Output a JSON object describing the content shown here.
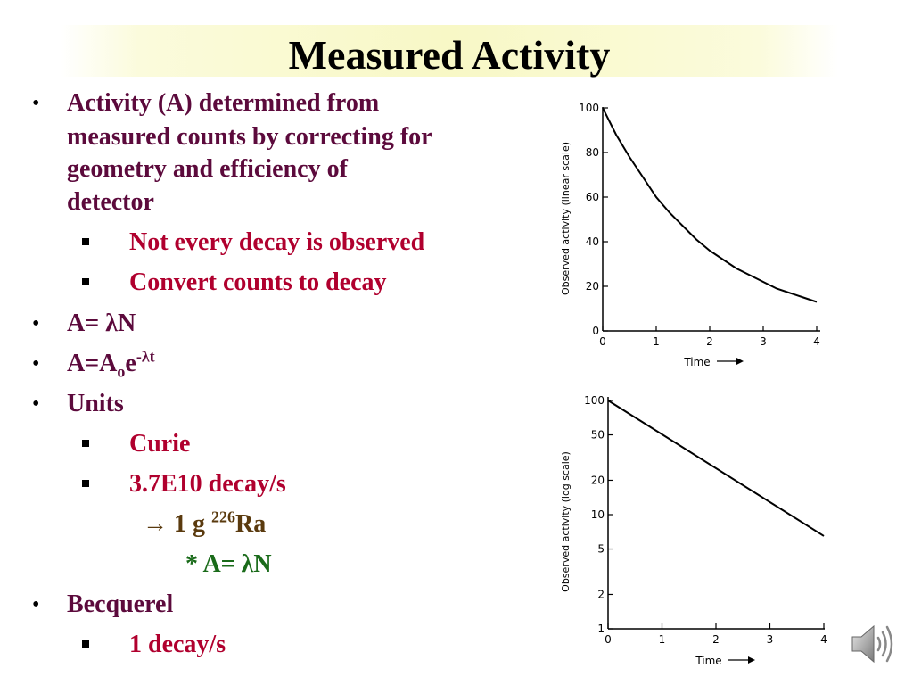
{
  "slide": {
    "title": "Measured Activity"
  },
  "bullets": {
    "b1_line1": "Activity (A) determined from",
    "b1_line2": "measured counts by correcting for",
    "b1_line3": "geometry and efficiency of",
    "b1_line4": "detector",
    "b1_sub1": "Not every decay is observed",
    "b1_sub2": "Convert counts to decay",
    "b2_prefix": "A= ",
    "b2_lambda": "λ",
    "b2_N": "N",
    "b3_A": "A=A",
    "b3_sub": "o",
    "b3_e": "e",
    "b3_sup": "-λt",
    "b4": "Units",
    "b4_sub1": "Curie",
    "b4_sub2": "3.7E10 decay/s",
    "b4_arrow": "→",
    "b4_ra_prefix": " 1 g ",
    "b4_ra_sup": "226",
    "b4_ra_suffix": "Ra",
    "b4_star_prefix": "* A= ",
    "b4_star_lambda": "λ",
    "b4_star_N": "N",
    "b5": "Becquerel",
    "b5_sub1": "1 decay/s"
  },
  "chart_data": [
    {
      "type": "line",
      "ylabel": "Observed activity (linear scale)",
      "xlabel": "Time",
      "x_ticks": [
        "0",
        "1",
        "2",
        "3",
        "4"
      ],
      "y_ticks": [
        "0",
        "20",
        "40",
        "60",
        "80",
        "100"
      ],
      "xlim": [
        0,
        4
      ],
      "ylim": [
        0,
        100
      ],
      "x": [
        0,
        0.25,
        0.5,
        0.75,
        1,
        1.25,
        1.5,
        1.75,
        2,
        2.25,
        2.5,
        2.75,
        3,
        3.25,
        3.5,
        3.75,
        4
      ],
      "y": [
        100,
        88,
        78,
        69,
        60,
        53,
        47,
        41,
        36,
        32,
        28,
        25,
        22,
        19,
        17,
        15,
        13
      ]
    },
    {
      "type": "line",
      "y_scale": "log",
      "ylabel": "Observed activity (log scale)",
      "xlabel": "Time",
      "x_ticks": [
        "0",
        "1",
        "2",
        "3",
        "4"
      ],
      "y_ticks": [
        "1",
        "2",
        "5",
        "10",
        "20",
        "50",
        "100"
      ],
      "xlim": [
        0,
        4
      ],
      "ylim": [
        1,
        100
      ],
      "x": [
        0,
        4
      ],
      "y": [
        100,
        6.5
      ]
    }
  ],
  "icons": {
    "speaker": "speaker-icon"
  }
}
